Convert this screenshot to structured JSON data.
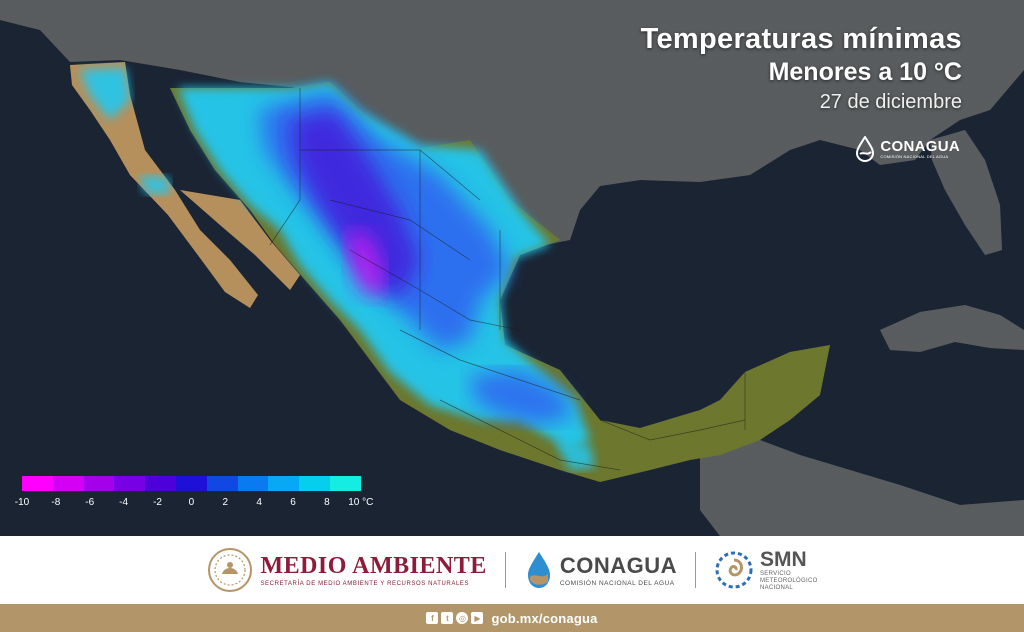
{
  "map": {
    "title": "Temperaturas mínimas",
    "subtitle": "Menores a 10 °C",
    "date": "27 de diciembre",
    "logo": {
      "name": "CONAGUA",
      "subtitle": "COMISIÓN NACIONAL DEL AGUA",
      "icon": "conagua-drop-icon"
    },
    "legend": {
      "unit": "°C",
      "ticks": [
        "-10",
        "-8",
        "-6",
        "-4",
        "-2",
        "0",
        "2",
        "4",
        "6",
        "8",
        "10"
      ],
      "colors": [
        "#ff00ff",
        "#d400f5",
        "#a400ec",
        "#7700e4",
        "#4d00d9",
        "#1f10d8",
        "#1148e4",
        "#0a7af0",
        "#07a8f4",
        "#06cfee",
        "#15ede2"
      ]
    },
    "palette": {
      "ocean": "#1b2433",
      "land_gray": "#5b5e60",
      "land_green": "#6f7a2e",
      "land_tan": "#b9935e",
      "cold_cyan": "#24c8f0",
      "cold_blue": "#2f6cf0",
      "cold_indigo": "#4322dd",
      "cold_magenta": "#d21cf2"
    }
  },
  "footer": {
    "medio_ambiente": {
      "title": "MEDIO AMBIENTE",
      "subtitle": "SECRETARÍA DE MEDIO AMBIENTE Y RECURSOS NATURALES",
      "icon": "mexico-seal-icon"
    },
    "conagua": {
      "title": "CONAGUA",
      "subtitle": "COMISIÓN NACIONAL DEL AGUA",
      "icon": "conagua-drop-icon"
    },
    "smn": {
      "title": "SMN",
      "subtitle_lines": [
        "SERVICIO",
        "METEOROLÓGICO",
        "NACIONAL"
      ],
      "icon": "smn-spiral-icon"
    }
  },
  "bottom_bar": {
    "url": "gob.mx/conagua",
    "social_icons": [
      "facebook-icon",
      "twitter-icon",
      "instagram-icon",
      "youtube-icon"
    ],
    "social_glyphs": [
      "f",
      "t",
      "◎",
      "▶"
    ]
  }
}
